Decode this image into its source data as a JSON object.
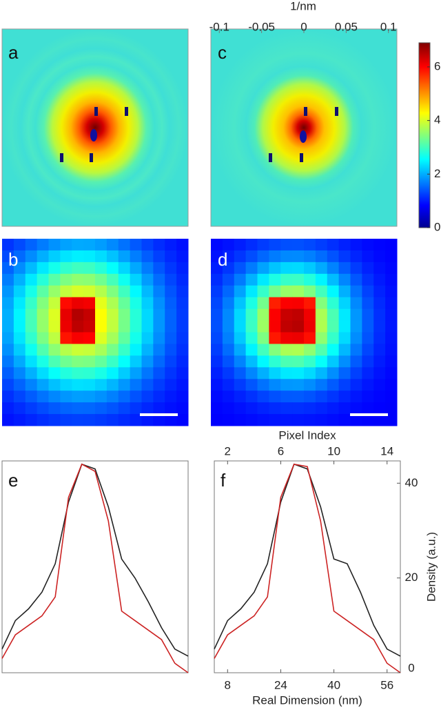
{
  "top_axis": {
    "label": "1/nm",
    "xlim": [
      -0.11,
      0.11
    ],
    "ticks": [
      -0.1,
      -0.05,
      0,
      0.05,
      0.1
    ]
  },
  "colorbar": {
    "lim": [
      0,
      6.9
    ],
    "ticks": [
      0,
      2,
      4,
      6
    ]
  },
  "panel_labels": [
    "a",
    "c",
    "b",
    "d"
  ],
  "chart_data": [
    {
      "type": "line",
      "label": "e",
      "x": [
        4,
        8,
        12,
        16,
        20,
        24,
        28,
        32,
        36,
        40,
        44,
        48,
        52,
        56,
        60
      ],
      "xlim": [
        4,
        60
      ],
      "ylim": [
        0,
        44.7
      ],
      "series": [
        {
          "color": "#222222",
          "values": [
            5,
            11,
            13.5,
            17,
            23,
            36,
            44,
            43,
            35,
            24,
            20,
            15,
            9.5,
            5,
            3.5
          ]
        },
        {
          "color": "#cc2222",
          "values": [
            3,
            8,
            10,
            12,
            16,
            37,
            44,
            42.5,
            32,
            13,
            11,
            9,
            7,
            2,
            0
          ]
        }
      ]
    },
    {
      "type": "line",
      "label": "f",
      "x": [
        4,
        8,
        12,
        16,
        20,
        24,
        28,
        32,
        36,
        40,
        44,
        48,
        52,
        56,
        60
      ],
      "xlim": [
        4,
        60
      ],
      "ylim": [
        0,
        44.7
      ],
      "xlabel": "Real Dimension (nm)",
      "xticks": [
        8,
        24,
        40,
        56
      ],
      "x2label": "Pixel Index",
      "x2lim": [
        1,
        15
      ],
      "x2ticks": [
        2,
        6,
        10,
        14
      ],
      "y2label": "Density (a.u.)",
      "yticks": [
        0,
        20,
        40
      ],
      "series": [
        {
          "color": "#222222",
          "values": [
            5,
            11,
            13.5,
            17,
            23,
            36,
            44,
            43,
            35,
            24,
            23,
            17,
            10,
            5,
            3.5
          ]
        },
        {
          "color": "#cc2222",
          "values": [
            3,
            8,
            10,
            12,
            16,
            37,
            44,
            43.5,
            32,
            13,
            11,
            9,
            7,
            2,
            0
          ]
        }
      ]
    }
  ]
}
